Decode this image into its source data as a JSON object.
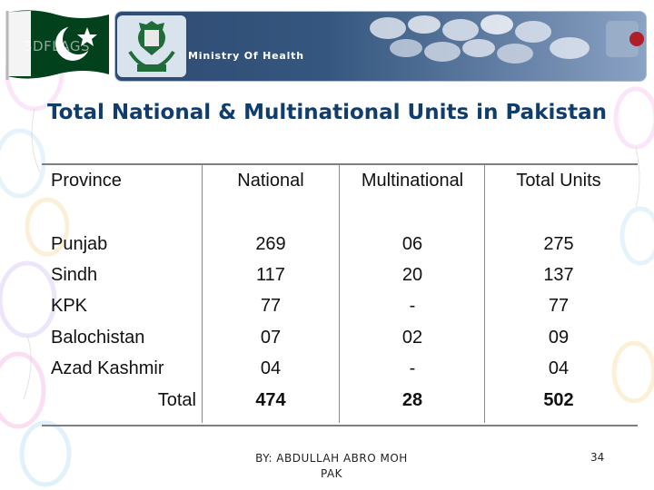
{
  "header": {
    "watermark": "3DFLAGS",
    "banner_title": "Ministry Of Health"
  },
  "title": "Total National & Multinational Units in Pakistan",
  "table": {
    "headers": [
      "Province",
      "National",
      "Multinational",
      "Total Units"
    ],
    "rows": [
      [
        "Punjab",
        "269",
        "06",
        "275"
      ],
      [
        "Sindh",
        "117",
        "20",
        "137"
      ],
      [
        "KPK",
        "77",
        "-",
        "77"
      ],
      [
        "Balochistan",
        "07",
        "02",
        "09"
      ],
      [
        "Azad Kashmir",
        "04",
        "-",
        "04"
      ]
    ],
    "total": [
      "Total",
      "474",
      "28",
      "502"
    ]
  },
  "footer": {
    "line1": "BY: ABDULLAH ABRO MOH",
    "line2": "PAK",
    "page_number": "34"
  },
  "colors": {
    "title": "#103d6b",
    "flag_green": "#01411c",
    "banner_blue": "#2f4a73"
  }
}
